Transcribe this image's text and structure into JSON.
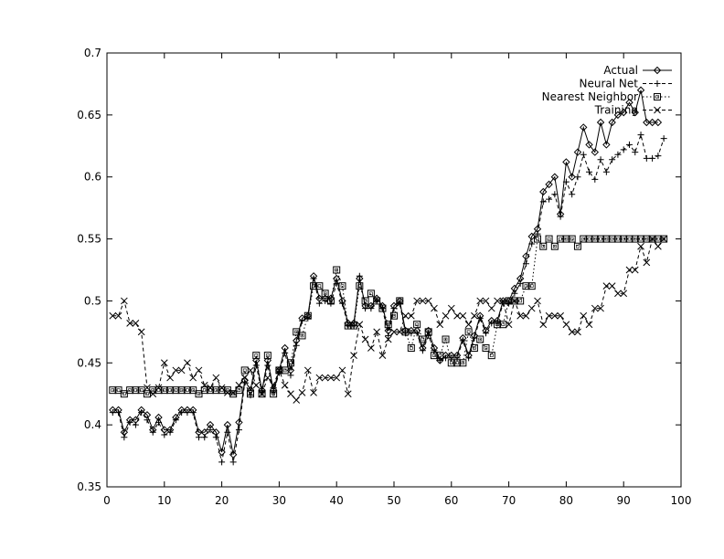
{
  "chart_data": {
    "type": "line",
    "title": "",
    "xlabel": "",
    "ylabel": "",
    "xlim": [
      0,
      100
    ],
    "ylim": [
      0.35,
      0.7
    ],
    "x_ticks": [
      "0",
      "10",
      "20",
      "30",
      "40",
      "50",
      "60",
      "70",
      "80",
      "90",
      "100"
    ],
    "y_ticks": [
      "0.35",
      "0.4",
      "0.45",
      "0.5",
      "0.55",
      "0.6",
      "0.65",
      "0.7"
    ],
    "grid": false,
    "legend_position": "top-right",
    "series": [
      {
        "name": "Actual",
        "marker": "diamond",
        "dash": "solid",
        "values": [
          0.412,
          0.412,
          0.394,
          0.404,
          0.404,
          0.412,
          0.408,
          0.396,
          0.406,
          0.396,
          0.396,
          0.406,
          0.412,
          0.412,
          0.412,
          0.394,
          0.394,
          0.4,
          0.394,
          0.378,
          0.4,
          0.376,
          0.402,
          0.436,
          0.428,
          0.452,
          0.428,
          0.452,
          0.428,
          0.444,
          0.462,
          0.444,
          0.468,
          0.486,
          0.488,
          0.52,
          0.502,
          0.502,
          0.502,
          0.518,
          0.5,
          0.482,
          0.482,
          0.518,
          0.496,
          0.496,
          0.502,
          0.496,
          0.476,
          0.496,
          0.5,
          0.476,
          0.476,
          0.476,
          0.462,
          0.476,
          0.462,
          0.452,
          0.456,
          0.456,
          0.456,
          0.47,
          0.456,
          0.472,
          0.488,
          0.476,
          0.484,
          0.484,
          0.5,
          0.5,
          0.51,
          0.518,
          0.536,
          0.552,
          0.558,
          0.588,
          0.594,
          0.6,
          0.57,
          0.612,
          0.6,
          0.62,
          0.64,
          0.626,
          0.62,
          0.644,
          0.626,
          0.644,
          0.65,
          0.652,
          0.66,
          0.652,
          0.67,
          0.644,
          0.644,
          0.644
        ]
      },
      {
        "name": "Neural Net",
        "marker": "plus",
        "dash": "dashed",
        "values": [
          0.41,
          0.41,
          0.39,
          0.402,
          0.4,
          0.41,
          0.404,
          0.394,
          0.402,
          0.392,
          0.394,
          0.404,
          0.41,
          0.41,
          0.41,
          0.39,
          0.39,
          0.396,
          0.39,
          0.37,
          0.394,
          0.37,
          0.396,
          0.434,
          0.424,
          0.448,
          0.426,
          0.448,
          0.426,
          0.442,
          0.458,
          0.44,
          0.464,
          0.484,
          0.486,
          0.518,
          0.498,
          0.5,
          0.498,
          0.514,
          0.498,
          0.48,
          0.48,
          0.52,
          0.494,
          0.494,
          0.5,
          0.494,
          0.472,
          0.494,
          0.498,
          0.474,
          0.474,
          0.474,
          0.46,
          0.472,
          0.46,
          0.452,
          0.454,
          0.454,
          0.454,
          0.468,
          0.454,
          0.47,
          0.486,
          0.474,
          0.482,
          0.482,
          0.498,
          0.498,
          0.506,
          0.514,
          0.53,
          0.546,
          0.554,
          0.58,
          0.582,
          0.586,
          0.568,
          0.596,
          0.586,
          0.6,
          0.618,
          0.604,
          0.598,
          0.614,
          0.604,
          0.614,
          0.618,
          0.622,
          0.626,
          0.62,
          0.634,
          0.615,
          0.615,
          0.617,
          0.631
        ]
      },
      {
        "name": "Nearest Neighbor",
        "marker": "square",
        "dash": "dotted",
        "values": [
          0.428,
          0.428,
          0.425,
          0.428,
          0.428,
          0.428,
          0.425,
          0.428,
          0.428,
          0.428,
          0.428,
          0.428,
          0.428,
          0.428,
          0.428,
          0.425,
          0.428,
          0.428,
          0.428,
          0.428,
          0.428,
          0.425,
          0.428,
          0.444,
          0.425,
          0.456,
          0.425,
          0.456,
          0.425,
          0.444,
          0.444,
          0.45,
          0.475,
          0.472,
          0.488,
          0.512,
          0.512,
          0.506,
          0.5,
          0.525,
          0.512,
          0.48,
          0.48,
          0.512,
          0.5,
          0.506,
          0.5,
          0.494,
          0.481,
          0.488,
          0.5,
          0.475,
          0.462,
          0.481,
          0.469,
          0.475,
          0.456,
          0.456,
          0.469,
          0.45,
          0.45,
          0.45,
          0.475,
          0.462,
          0.469,
          0.462,
          0.456,
          0.481,
          0.481,
          0.5,
          0.5,
          0.5,
          0.512,
          0.512,
          0.55,
          0.544,
          0.55,
          0.544,
          0.55,
          0.55,
          0.55,
          0.544,
          0.55,
          0.55,
          0.55,
          0.55,
          0.55,
          0.55,
          0.55,
          0.55,
          0.55,
          0.55,
          0.55,
          0.55,
          0.55,
          0.55,
          0.55
        ]
      },
      {
        "name": "Training",
        "marker": "cross",
        "dash": "dashed",
        "values": [
          0.488,
          0.488,
          0.5,
          0.482,
          0.482,
          0.475,
          0.43,
          0.425,
          0.43,
          0.45,
          0.438,
          0.444,
          0.444,
          0.45,
          0.438,
          0.444,
          0.432,
          0.43,
          0.438,
          0.43,
          0.426,
          0.426,
          0.432,
          0.438,
          0.444,
          0.432,
          0.425,
          0.438,
          0.432,
          0.444,
          0.432,
          0.425,
          0.42,
          0.426,
          0.444,
          0.426,
          0.438,
          0.438,
          0.438,
          0.438,
          0.444,
          0.425,
          0.456,
          0.481,
          0.469,
          0.462,
          0.475,
          0.456,
          0.469,
          0.475,
          0.475,
          0.488,
          0.488,
          0.5,
          0.5,
          0.5,
          0.494,
          0.481,
          0.488,
          0.494,
          0.488,
          0.488,
          0.481,
          0.488,
          0.5,
          0.5,
          0.494,
          0.5,
          0.5,
          0.481,
          0.5,
          0.488,
          0.488,
          0.494,
          0.5,
          0.481,
          0.488,
          0.488,
          0.488,
          0.481,
          0.475,
          0.475,
          0.488,
          0.481,
          0.494,
          0.494,
          0.512,
          0.512,
          0.506,
          0.506,
          0.525,
          0.525,
          0.544,
          0.531,
          0.55,
          0.544,
          0.55
        ]
      }
    ]
  }
}
